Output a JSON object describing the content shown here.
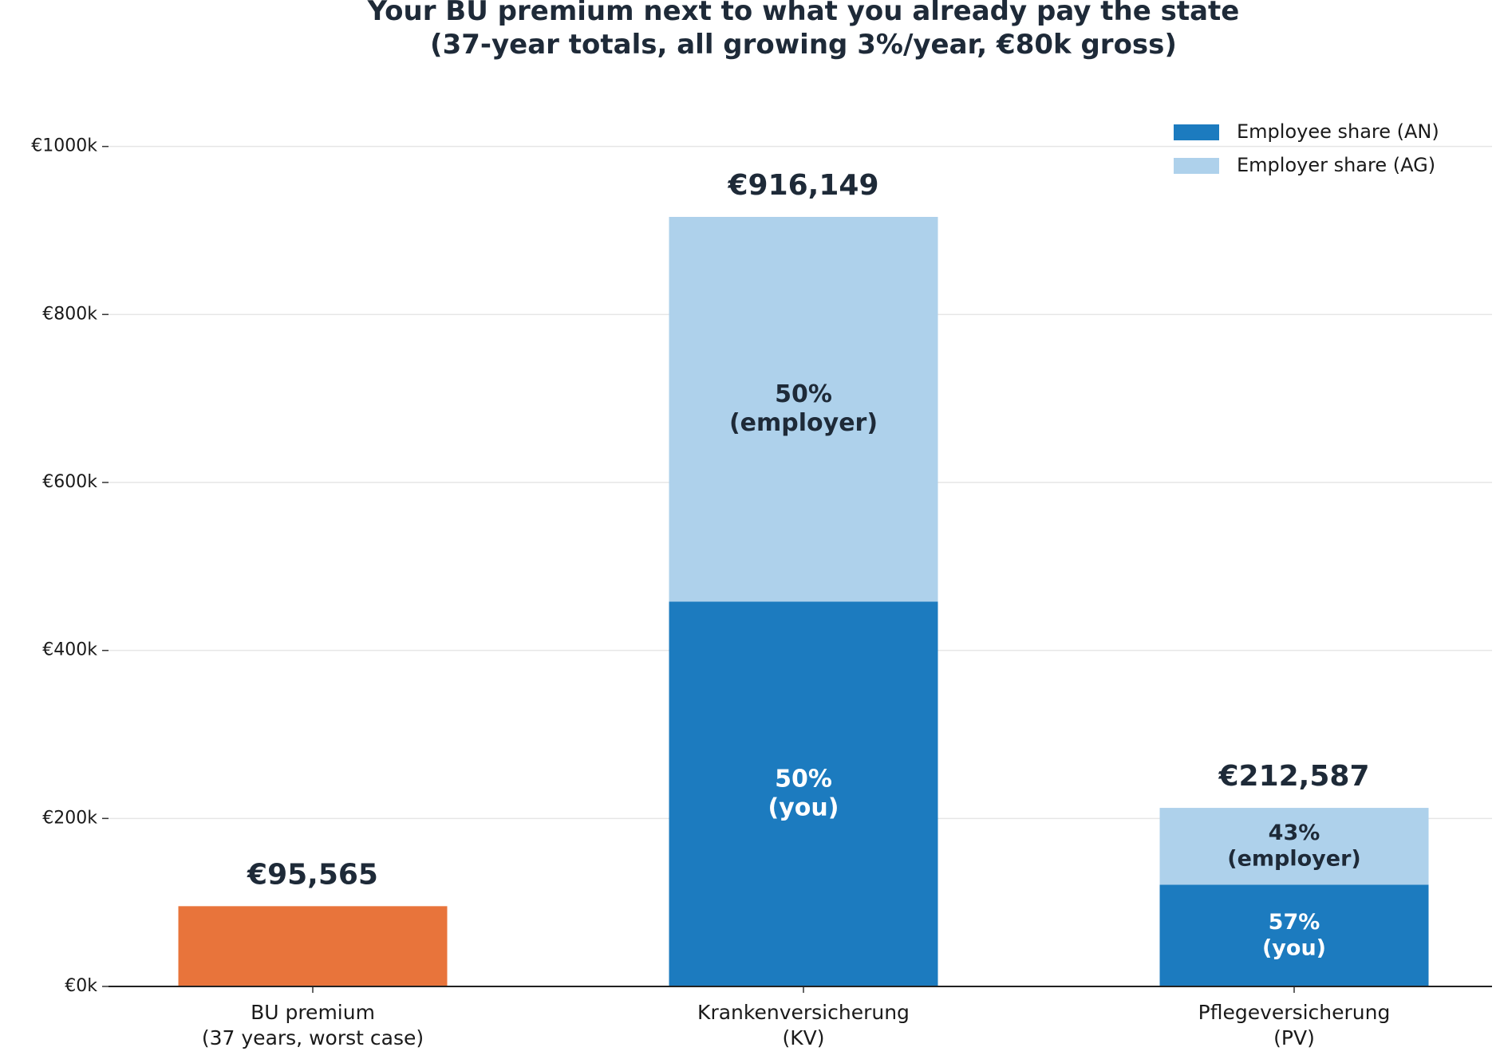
{
  "chart_data": {
    "type": "stacked_bar",
    "title": "Your BU premium next to what you already pay the state\n(37-year totals, all growing 3%/year, €80k gross)",
    "categories": [
      "BU premium\n(37 years, worst case)",
      "Krankenversicherung\n(KV)",
      "Pflegeversicherung\n(PV)"
    ],
    "series": [
      {
        "color": "#e8743b",
        "values": [
          95565,
          null,
          null
        ],
        "segment_labels": [
          null,
          null,
          null
        ]
      },
      {
        "name": "Employee share (AN)",
        "color": "#1c7bbf",
        "values": [
          null,
          458075,
          121175
        ],
        "segment_labels": [
          null,
          "50%\n(you)",
          "57%\n(you)"
        ],
        "label_color": "#ffffff"
      },
      {
        "name": "Employer share (AG)",
        "color": "#aed1eb",
        "values": [
          null,
          458074,
          91412
        ],
        "segment_labels": [
          null,
          "50%\n(employer)",
          "43%\n(employer)"
        ],
        "label_color": "#1e2a38"
      }
    ],
    "totals": [
      95565,
      916149,
      212587
    ],
    "total_labels": [
      "€95,565",
      "€916,149",
      "€212,587"
    ],
    "ylim": [
      0,
      1050000
    ],
    "yticks": [
      {
        "value": 0,
        "label": "€0k"
      },
      {
        "value": 200000,
        "label": "€200k"
      },
      {
        "value": 400000,
        "label": "€400k"
      },
      {
        "value": 600000,
        "label": "€600k"
      },
      {
        "value": 800000,
        "label": "€800k"
      },
      {
        "value": 1000000,
        "label": "€1000k"
      }
    ],
    "grid": true,
    "legend": "upper right"
  }
}
